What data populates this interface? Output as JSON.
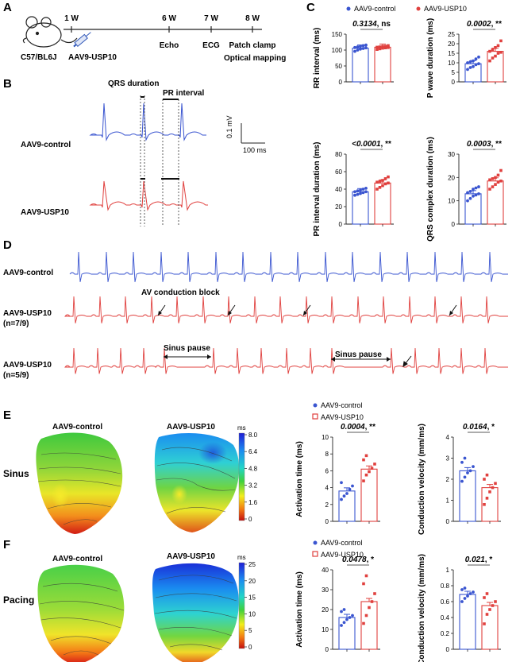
{
  "panels": {
    "A": "A",
    "B": "B",
    "C": "C",
    "D": "D",
    "E": "E",
    "F": "F"
  },
  "timeline": {
    "mouse_strain": "C57/BL6J",
    "injection": "AAV9-USP10",
    "ticks": [
      {
        "week": "1 W",
        "event": ""
      },
      {
        "week": "6 W",
        "event": "Echo"
      },
      {
        "week": "7 W",
        "event": "ECG"
      },
      {
        "week": "8 W",
        "event": "Patch clamp"
      }
    ],
    "extra_event": "Optical mapping"
  },
  "ecg": {
    "qrs_label": "QRS duration",
    "pr_label": "PR interval",
    "control_label": "AAV9-control",
    "usp10_label": "AAV9-USP10",
    "scale_v": "0.1 mV",
    "scale_t": "100 ms",
    "control_color": "#3a55d0",
    "usp10_color": "#e0403e"
  },
  "legend": {
    "control": "AAV9-control",
    "usp10": "AAV9-USP10"
  },
  "chart_data": [
    {
      "type": "bar",
      "id": "rr",
      "ylabel": "RR interval (ms)",
      "ylim": [
        0,
        150
      ],
      "yticks": [
        0,
        50,
        100,
        150
      ],
      "categories": [
        "AAV9-control",
        "AAV9-USP10"
      ],
      "values": [
        106,
        109
      ],
      "points": [
        [
          96,
          100,
          103,
          105,
          107,
          108,
          110,
          112,
          114,
          116
        ],
        [
          102,
          104,
          106,
          107,
          108,
          109,
          110,
          111,
          112,
          114
        ]
      ],
      "p": "0.3134",
      "sig": ", ns"
    },
    {
      "type": "bar",
      "id": "pwave",
      "ylabel": "P wave duration (ms)",
      "ylim": [
        0,
        25
      ],
      "yticks": [
        0,
        5,
        10,
        15,
        20,
        25
      ],
      "categories": [
        "AAV9-control",
        "AAV9-USP10"
      ],
      "values": [
        9.5,
        16
      ],
      "points": [
        [
          6.5,
          7.5,
          8,
          9,
          9.5,
          10,
          10.5,
          11,
          12,
          13
        ],
        [
          11,
          12.5,
          13.5,
          15,
          15.5,
          16,
          17,
          18,
          19,
          21.5
        ]
      ],
      "p": "0.0002",
      "sig": ", **"
    },
    {
      "type": "bar",
      "id": "pr",
      "ylabel": "PR interval duration (ms)",
      "ylim": [
        0,
        80
      ],
      "yticks": [
        0,
        20,
        40,
        60,
        80
      ],
      "categories": [
        "AAV9-control",
        "AAV9-USP10"
      ],
      "values": [
        37,
        47
      ],
      "points": [
        [
          33,
          34,
          35,
          36,
          37,
          37,
          38,
          39,
          40,
          41
        ],
        [
          40,
          42,
          44,
          46,
          47,
          48,
          49,
          50,
          52,
          54
        ]
      ],
      "p": "<0.0001",
      "sig": ", **"
    },
    {
      "type": "bar",
      "id": "qrs",
      "ylabel": "QRS complex duration (ms)",
      "ylim": [
        0,
        30
      ],
      "yticks": [
        0,
        10,
        20,
        30
      ],
      "categories": [
        "AAV9-control",
        "AAV9-USP10"
      ],
      "values": [
        13,
        18.5
      ],
      "points": [
        [
          10,
          11,
          12,
          12.5,
          13,
          13.5,
          14,
          15,
          15.5,
          16
        ],
        [
          15,
          16,
          17,
          18,
          18.5,
          19,
          19.5,
          20,
          21,
          23
        ]
      ],
      "p": "0.0003",
      "sig": ", **"
    },
    {
      "type": "bar",
      "id": "sinus_act",
      "ylabel": "Activation time (ms)",
      "ylim": [
        0,
        10
      ],
      "yticks": [
        0,
        2,
        4,
        6,
        8,
        10
      ],
      "categories": [
        "AAV9-control",
        "AAV9-USP10"
      ],
      "values": [
        3.6,
        6.2
      ],
      "points": [
        [
          2.6,
          3.0,
          3.3,
          3.8,
          4.2,
          4.6
        ],
        [
          4.8,
          5.5,
          5.9,
          6.3,
          6.8,
          7.3,
          7.8
        ]
      ],
      "p": "0.0004",
      "sig": ", **"
    },
    {
      "type": "bar",
      "id": "sinus_cv",
      "ylabel": "Conduction velocity (mm/ms)",
      "ylim": [
        0,
        4
      ],
      "yticks": [
        0,
        1,
        2,
        3,
        4
      ],
      "categories": [
        "AAV9-control",
        "AAV9-USP10"
      ],
      "values": [
        2.4,
        1.6
      ],
      "points": [
        [
          1.9,
          2.1,
          2.3,
          2.4,
          2.6,
          2.8,
          3.0
        ],
        [
          0.8,
          1.1,
          1.4,
          1.6,
          1.8,
          2.0,
          2.2
        ]
      ],
      "p": "0.0164",
      "sig": ", *"
    },
    {
      "type": "bar",
      "id": "pacing_act",
      "ylabel": "Activation time (ms)",
      "ylim": [
        0,
        40
      ],
      "yticks": [
        0,
        10,
        20,
        30,
        40
      ],
      "categories": [
        "AAV9-control",
        "AAV9-USP10"
      ],
      "values": [
        16,
        24
      ],
      "points": [
        [
          12,
          13.5,
          15,
          16,
          17,
          19,
          20
        ],
        [
          13,
          17,
          21,
          24,
          28,
          33,
          37
        ]
      ],
      "p": "0.0478",
      "sig": ", *"
    },
    {
      "type": "bar",
      "id": "pacing_cv",
      "ylabel": "Conduction velocity (mm/ms)",
      "ylim": [
        0,
        1.0
      ],
      "yticks": [
        0,
        0.2,
        0.4,
        0.6,
        0.8,
        1.0
      ],
      "categories": [
        "AAV9-control",
        "AAV9-USP10"
      ],
      "values": [
        0.69,
        0.55
      ],
      "points": [
        [
          0.6,
          0.64,
          0.67,
          0.7,
          0.72,
          0.75,
          0.77
        ],
        [
          0.32,
          0.44,
          0.5,
          0.55,
          0.6,
          0.65,
          0.7
        ]
      ],
      "p": "0.021",
      "sig": ", *"
    }
  ],
  "rhythm": {
    "row1": "AAV9-control",
    "row2a": "AAV9-USP10",
    "row2b": "(n=7/9)",
    "row3a": "AAV9-USP10",
    "row3b": "(n=5/9)",
    "block_label": "AV conduction block",
    "pause_label": "Sinus pause"
  },
  "maps": {
    "control": "AAV9-control",
    "usp10": "AAV9-USP10",
    "sinus": "Sinus",
    "pacing": "Pacing",
    "unit": "ms",
    "sinus_scale": [
      "8.0",
      "6.4",
      "4.8",
      "3.2",
      "1.6",
      "0"
    ],
    "pacing_scale": [
      "25",
      "20",
      "15",
      "10",
      "5",
      "0"
    ]
  },
  "colors": {
    "control": "#3a55d0",
    "usp10": "#e0403e"
  }
}
